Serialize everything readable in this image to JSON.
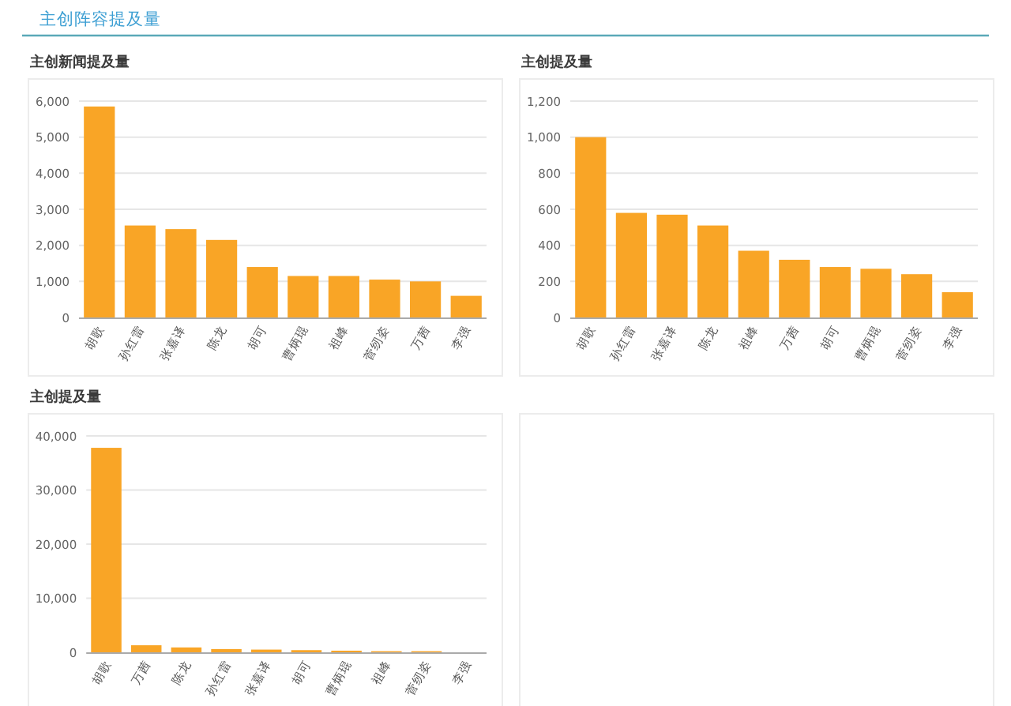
{
  "chart_data": [
    {
      "type": "bar",
      "title": "主创新闻提及量",
      "annotations": [
        "主创阵容提及量"
      ],
      "categories": [
        "胡歌",
        "孙红雷",
        "张嘉译",
        "陈龙",
        "胡可",
        "曹炳琨",
        "祖峰",
        "菅纫姿",
        "万茜",
        "李强"
      ],
      "values": [
        5850,
        2550,
        2450,
        2150,
        1400,
        1150,
        1150,
        1050,
        1000,
        600
      ],
      "color": "#f9a526",
      "ylim": [
        0,
        6000
      ],
      "yticks": [
        0,
        {
          "value": 1000,
          "label": "1,000"
        },
        {
          "value": 2000,
          "label": "2,000"
        },
        {
          "value": 3000,
          "label": "3,000"
        },
        {
          "value": 4000,
          "label": "4,000"
        },
        {
          "value": 5000,
          "label": "5,000"
        },
        {
          "value": 6000,
          "label": "6,000"
        }
      ],
      "grid": "y"
    },
    {
      "type": "bar",
      "title": "主创提及量",
      "categories": [
        "胡歌",
        "孙红雷",
        "张嘉译",
        "陈龙",
        "祖峰",
        "万茜",
        "胡可",
        "曹炳琨",
        "菅纫姿",
        "李强"
      ],
      "values": [
        1000,
        580,
        570,
        510,
        370,
        320,
        280,
        270,
        240,
        140
      ],
      "color": "#f9a526",
      "ylim": [
        0,
        1200
      ],
      "yticks": [
        0,
        200,
        400,
        600,
        800,
        {
          "value": 1000,
          "label": "1,000"
        },
        {
          "value": 1200,
          "label": "1,200"
        }
      ],
      "grid": "y"
    },
    {
      "type": "bar",
      "title": "主创提及量",
      "categories": [
        "胡歌",
        "万茜",
        "陈龙",
        "孙红雷",
        "张嘉译",
        "胡可",
        "曹炳琨",
        "祖峰",
        "菅纫姿",
        "李强"
      ],
      "values": [
        37800,
        1300,
        900,
        600,
        500,
        400,
        300,
        200,
        200,
        null
      ],
      "color": "#f9a526",
      "ylim": [
        0,
        40000
      ],
      "yticks": [
        0,
        {
          "value": 10000,
          "label": "10,000"
        },
        {
          "value": 20000,
          "label": "20,000"
        },
        {
          "value": 30000,
          "label": "30,000"
        },
        {
          "value": 40000,
          "label": "40,000"
        }
      ],
      "grid": "y"
    }
  ]
}
